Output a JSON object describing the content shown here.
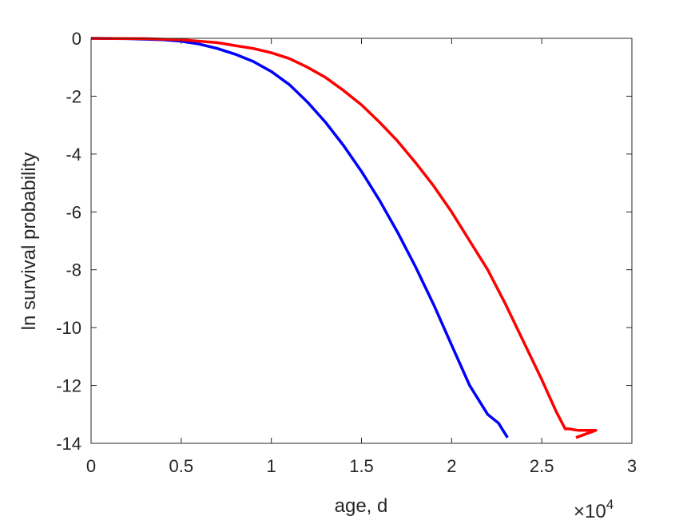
{
  "chart_data": {
    "type": "line",
    "xlabel": "age, d",
    "ylabel": "ln survival probability",
    "x_multiplier": "×10",
    "x_multiplier_exponent": "4",
    "xlim": [
      0,
      3
    ],
    "ylim": [
      -14,
      0
    ],
    "xticks": [
      0,
      0.5,
      1,
      1.5,
      2,
      2.5,
      3
    ],
    "xtick_labels": [
      "0",
      "0.5",
      "1",
      "1.5",
      "2",
      "2.5",
      "3"
    ],
    "yticks": [
      0,
      -2,
      -4,
      -6,
      -8,
      -10,
      -12,
      -14
    ],
    "ytick_labels": [
      "0",
      "-2",
      "-4",
      "-6",
      "-8",
      "-10",
      "-12",
      "-14"
    ],
    "grid": false,
    "series": [
      {
        "color": "#0000ff",
        "x": [
          0,
          0.2,
          0.4,
          0.5,
          0.6,
          0.7,
          0.8,
          0.9,
          1.0,
          1.1,
          1.2,
          1.3,
          1.4,
          1.5,
          1.6,
          1.7,
          1.8,
          1.9,
          2.0,
          2.1,
          2.2,
          2.26,
          2.31
        ],
        "y": [
          0,
          -0.01,
          -0.05,
          -0.1,
          -0.2,
          -0.35,
          -0.55,
          -0.8,
          -1.15,
          -1.6,
          -2.2,
          -2.9,
          -3.7,
          -4.6,
          -5.6,
          -6.7,
          -7.9,
          -9.2,
          -10.6,
          -12.0,
          -13.0,
          -13.3,
          -13.8
        ]
      },
      {
        "color": "#ff0000",
        "x": [
          0,
          0.3,
          0.5,
          0.6,
          0.7,
          0.8,
          0.9,
          1.0,
          1.1,
          1.2,
          1.3,
          1.4,
          1.5,
          1.6,
          1.7,
          1.8,
          1.9,
          2.0,
          2.1,
          2.2,
          2.3,
          2.4,
          2.5,
          2.58,
          2.63,
          2.65,
          2.7,
          2.8,
          2.69
        ],
        "y": [
          0,
          -0.01,
          -0.05,
          -0.1,
          -0.15,
          -0.25,
          -0.35,
          -0.5,
          -0.7,
          -1.0,
          -1.35,
          -1.8,
          -2.3,
          -2.9,
          -3.55,
          -4.3,
          -5.1,
          -6.0,
          -7.0,
          -8.0,
          -9.2,
          -10.5,
          -11.8,
          -12.9,
          -13.5,
          -13.5,
          -13.55,
          -13.55,
          -13.8
        ]
      }
    ]
  }
}
